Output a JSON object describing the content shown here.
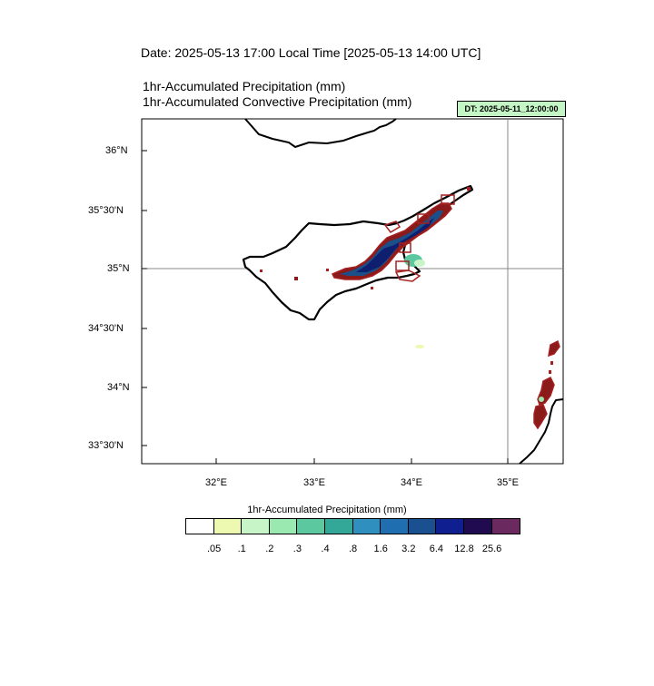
{
  "header": {
    "date_line": "Date: 2025-05-13  17:00 Local Time [2025-05-13  14:00 UTC]",
    "line1": "1hr-Accumulated Precipitation   (mm)",
    "line2": "1hr-Accumulated Convective Precipitation   (mm)",
    "dt_badge": "DT: 2025-05-11_12:00:00"
  },
  "map": {
    "lon_ticks": [
      "32°E",
      "33°E",
      "34°E",
      "35°E"
    ],
    "lat_ticks": [
      "36°N",
      "35°30'N",
      "35°N",
      "34°30'N",
      "34°N",
      "33°30'N"
    ],
    "gridline_lon": "35°E",
    "gridline_lat": "35°N"
  },
  "colorbar": {
    "title": "1hr-Accumulated Precipitation  (mm)",
    "colors": [
      "#ffffff",
      "#edf8b1",
      "#c7f5c7",
      "#99e9b0",
      "#5cc8a0",
      "#33a898",
      "#2f90c0",
      "#1f6fb0",
      "#1a5090",
      "#0f1f90",
      "#200a50",
      "#6a2a60"
    ],
    "labels": [
      ".05",
      ".1",
      ".2",
      ".3",
      ".4",
      ".8",
      "1.6",
      "3.2",
      "6.4",
      "12.8",
      "25.6"
    ]
  }
}
